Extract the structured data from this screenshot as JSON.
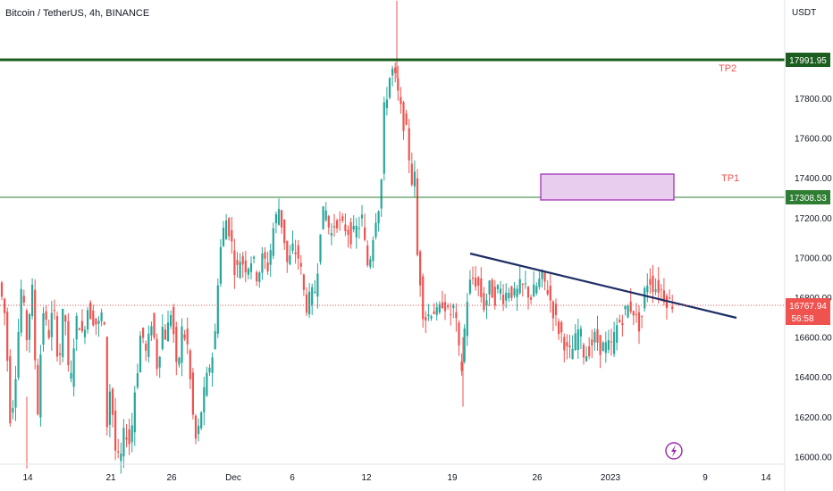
{
  "header": {
    "symbol_title": "Bitcoin / TetherUS, 4h, BINANCE",
    "currency": "USDT"
  },
  "colors": {
    "up": "#26a69a",
    "down": "#ef5350",
    "tp2_line": "#1b5e20",
    "tp1_line": "#2e7d32",
    "trend_line": "#1e2f66",
    "zone_fill": "#e8cdee",
    "zone_border": "#9c27b0",
    "last_price": "#ef5350",
    "tp_label": "#ef5350"
  },
  "annotations": {
    "tp2": {
      "label": "TP2",
      "price": "17991.95"
    },
    "tp1": {
      "label": "TP1",
      "price": "17308.53"
    },
    "last_price": {
      "price": "16767.94",
      "countdown": "56:58"
    }
  },
  "chart_data": {
    "type": "candlestick",
    "title": "Bitcoin / TetherUS, 4h, BINANCE",
    "ylabel": "USDT",
    "ylim": [
      15940,
      18290
    ],
    "y_ticks": [
      16000,
      16200,
      16400,
      16600,
      16800,
      17000,
      17200,
      17400,
      17600,
      17800
    ],
    "y_tick_labels": [
      "16000.00",
      "16200.00",
      "16400.00",
      "16600.00",
      "16800.00",
      "17000.00",
      "17200.00",
      "17400.00",
      "17600.00",
      "17800.00"
    ],
    "x_tick_labels": [
      "14",
      "21",
      "26",
      "Dec",
      "6",
      "12",
      "19",
      "26",
      "2023",
      "9",
      "14"
    ],
    "price_path": [
      [
        0,
        16900
      ],
      [
        8,
        16700
      ],
      [
        14,
        16150
      ],
      [
        20,
        16450
      ],
      [
        26,
        16850
      ],
      [
        32,
        16600
      ],
      [
        38,
        16850
      ],
      [
        44,
        16200
      ],
      [
        50,
        16750
      ],
      [
        56,
        16600
      ],
      [
        62,
        16750
      ],
      [
        68,
        16450
      ],
      [
        74,
        16800
      ],
      [
        80,
        16300
      ],
      [
        86,
        16650
      ],
      [
        90,
        16700
      ],
      [
        94,
        16600
      ],
      [
        100,
        16750
      ],
      [
        106,
        16700
      ],
      [
        112,
        16650
      ],
      [
        118,
        16750
      ],
      [
        122,
        16150
      ],
      [
        126,
        16400
      ],
      [
        130,
        16050
      ],
      [
        136,
        15950
      ],
      [
        142,
        16150
      ],
      [
        148,
        16050
      ],
      [
        152,
        16300
      ],
      [
        156,
        16450
      ],
      [
        160,
        16650
      ],
      [
        166,
        16500
      ],
      [
        172,
        16700
      ],
      [
        178,
        16450
      ],
      [
        184,
        16650
      ],
      [
        188,
        16600
      ],
      [
        194,
        16750
      ],
      [
        200,
        16400
      ],
      [
        206,
        16650
      ],
      [
        212,
        16550
      ],
      [
        218,
        16200
      ],
      [
        222,
        16050
      ],
      [
        226,
        16200
      ],
      [
        230,
        16300
      ],
      [
        236,
        16450
      ],
      [
        242,
        16550
      ],
      [
        246,
        16900
      ],
      [
        250,
        17100
      ],
      [
        256,
        17200
      ],
      [
        262,
        17050
      ],
      [
        266,
        16900
      ],
      [
        270,
        17000
      ],
      [
        278,
        16950
      ],
      [
        284,
        17000
      ],
      [
        290,
        16900
      ],
      [
        296,
        17000
      ],
      [
        302,
        16950
      ],
      [
        308,
        17150
      ],
      [
        314,
        17250
      ],
      [
        320,
        17100
      ],
      [
        324,
        16950
      ],
      [
        330,
        17050
      ],
      [
        336,
        17000
      ],
      [
        340,
        16900
      ],
      [
        344,
        16750
      ],
      [
        350,
        16800
      ],
      [
        356,
        16850
      ],
      [
        360,
        17150
      ],
      [
        366,
        17250
      ],
      [
        372,
        17100
      ],
      [
        378,
        17200
      ],
      [
        384,
        17150
      ],
      [
        390,
        17150
      ],
      [
        396,
        17100
      ],
      [
        402,
        17150
      ],
      [
        408,
        17200
      ],
      [
        412,
        16950
      ],
      [
        416,
        17000
      ],
      [
        422,
        17200
      ],
      [
        428,
        17300
      ],
      [
        432,
        17750
      ],
      [
        436,
        17850
      ],
      [
        440,
        17950
      ],
      [
        444,
        17900
      ],
      [
        448,
        17800
      ],
      [
        452,
        17700
      ],
      [
        456,
        17650
      ],
      [
        460,
        17500
      ],
      [
        464,
        17350
      ],
      [
        466,
        17400
      ],
      [
        468,
        17050
      ],
      [
        472,
        16900
      ],
      [
        476,
        16700
      ],
      [
        480,
        16700
      ],
      [
        486,
        16750
      ],
      [
        492,
        16700
      ],
      [
        498,
        16800
      ],
      [
        504,
        16700
      ],
      [
        510,
        16750
      ],
      [
        514,
        16600
      ],
      [
        518,
        16400
      ],
      [
        522,
        16650
      ],
      [
        526,
        16850
      ],
      [
        532,
        16900
      ],
      [
        538,
        16850
      ],
      [
        544,
        16750
      ],
      [
        550,
        16850
      ],
      [
        556,
        16800
      ],
      [
        560,
        16850
      ],
      [
        566,
        16800
      ],
      [
        572,
        16850
      ],
      [
        578,
        16800
      ],
      [
        584,
        16850
      ],
      [
        590,
        16850
      ],
      [
        596,
        16800
      ],
      [
        602,
        16850
      ],
      [
        608,
        16900
      ],
      [
        614,
        16850
      ],
      [
        620,
        16750
      ],
      [
        626,
        16650
      ],
      [
        632,
        16600
      ],
      [
        638,
        16500
      ],
      [
        644,
        16550
      ],
      [
        650,
        16650
      ],
      [
        656,
        16500
      ],
      [
        662,
        16550
      ],
      [
        668,
        16600
      ],
      [
        674,
        16550
      ],
      [
        680,
        16550
      ],
      [
        686,
        16550
      ],
      [
        692,
        16650
      ],
      [
        698,
        16700
      ],
      [
        704,
        16750
      ],
      [
        710,
        16750
      ],
      [
        716,
        16650
      ],
      [
        720,
        16700
      ],
      [
        724,
        16850
      ],
      [
        728,
        16900
      ],
      [
        734,
        16850
      ],
      [
        740,
        16850
      ],
      [
        746,
        16800
      ],
      [
        752,
        16770
      ]
    ],
    "lines": [
      {
        "name": "TP2",
        "price": 17991.95
      },
      {
        "name": "TP1",
        "price": 17308.53
      }
    ],
    "trend_line": {
      "points": [
        [
          16990,
          "start"
        ],
        [
          16700,
          "end"
        ]
      ]
    },
    "zone": {
      "low": 17305,
      "high": 17430
    },
    "last_price": 16767.94,
    "grid": false
  }
}
